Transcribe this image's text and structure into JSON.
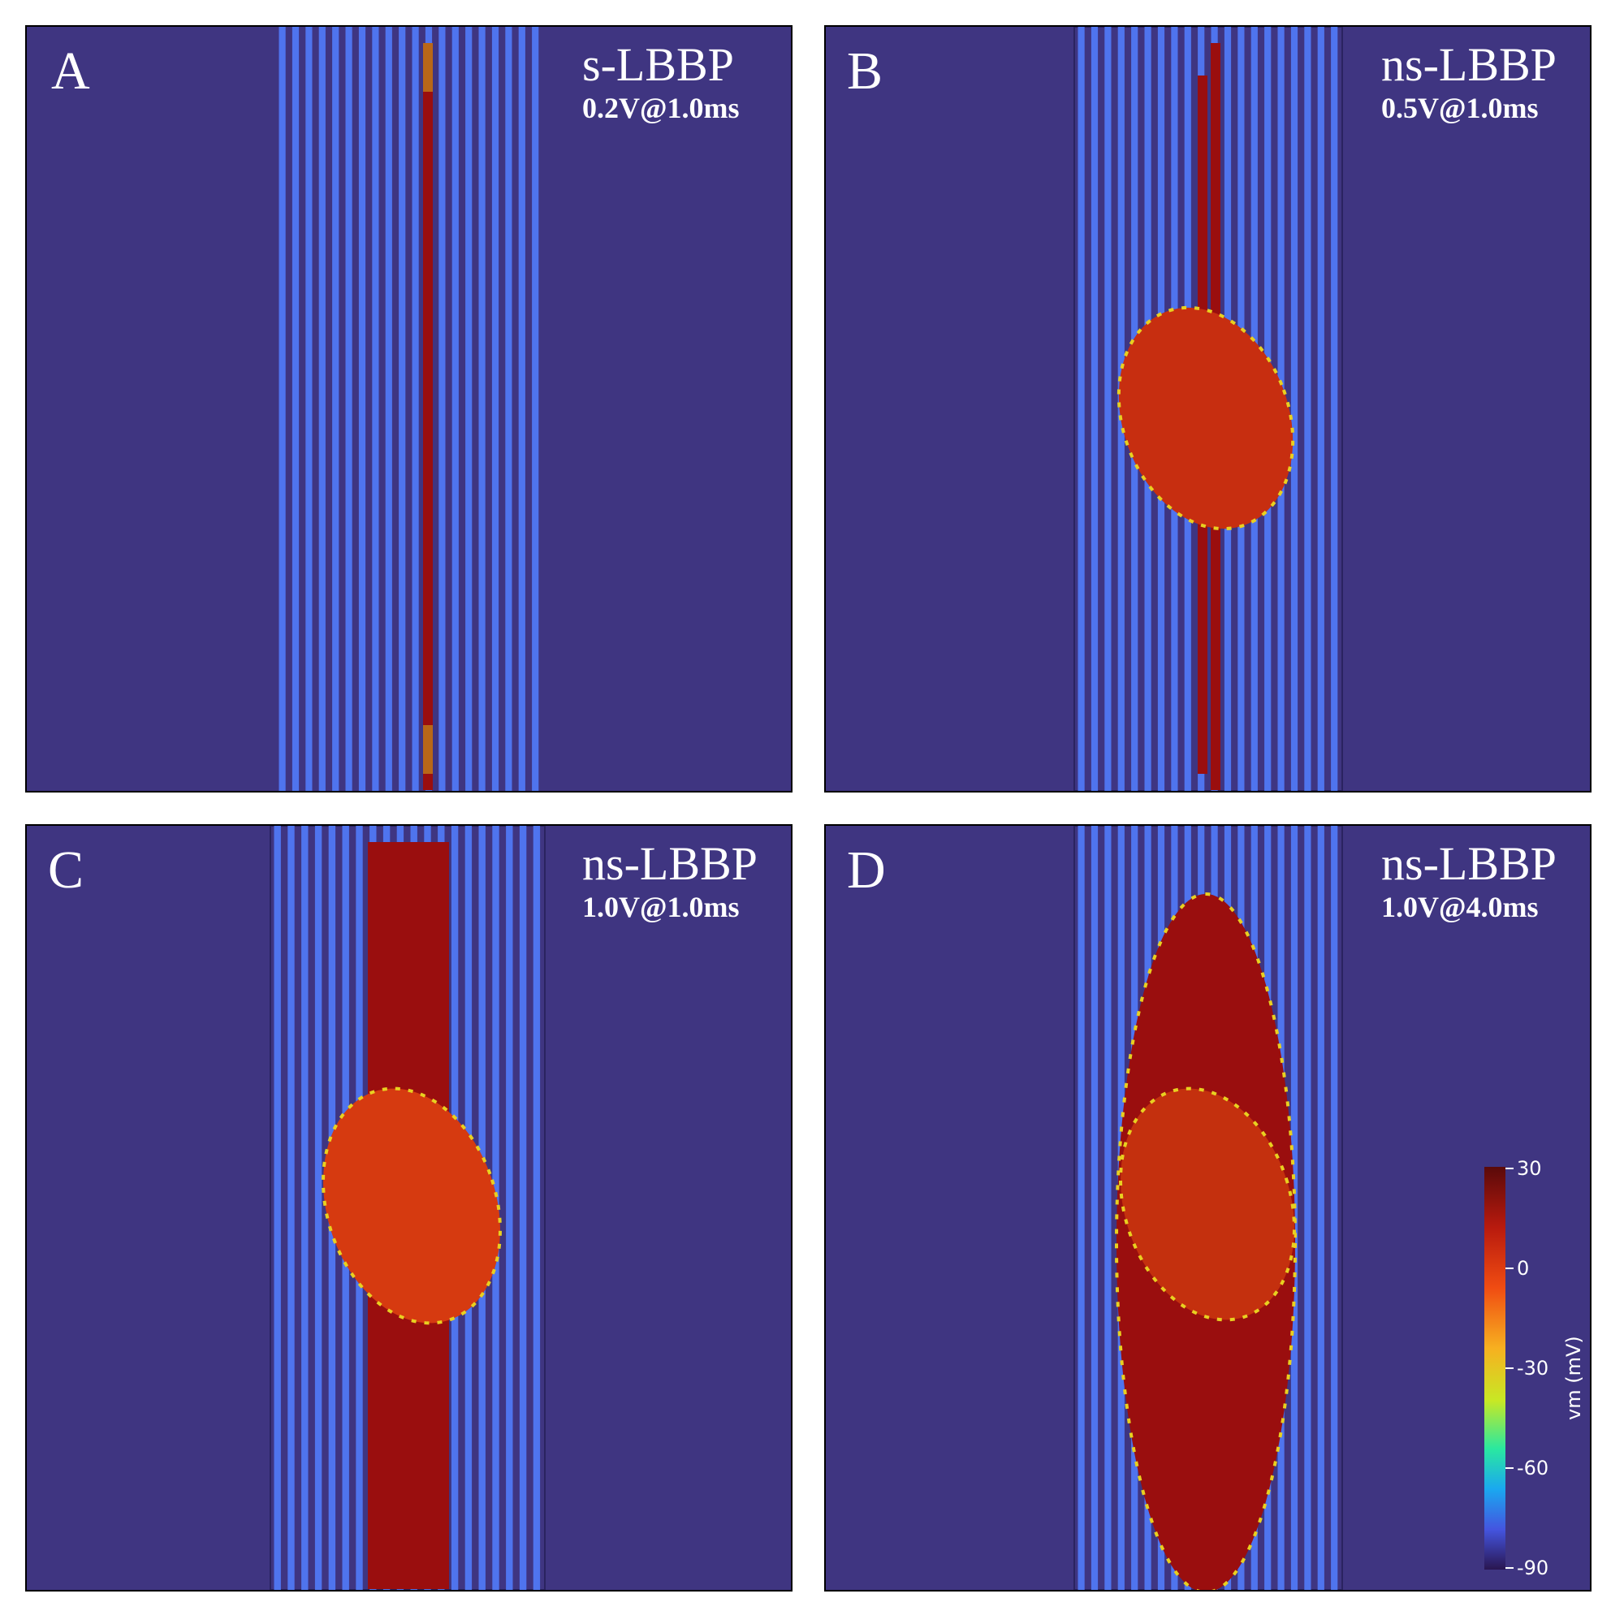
{
  "colors": {
    "background": "#3f3581",
    "fiber_resting": "#4f74ee",
    "fiber_activated": "#9a0e0e",
    "activation_core": "#d83a10"
  },
  "panels": [
    {
      "letter": "A",
      "title": "s-LBBP",
      "param": "0.2V@1.0ms"
    },
    {
      "letter": "B",
      "title": "ns-LBBP",
      "param": "0.5V@1.0ms"
    },
    {
      "letter": "C",
      "title": "ns-LBBP",
      "param": "1.0V@1.0ms"
    },
    {
      "letter": "D",
      "title": "ns-LBBP",
      "param": "1.0V@4.0ms"
    }
  ],
  "colorbar": {
    "title": "vm (mV)",
    "ticks": [
      "30",
      "0",
      "-30",
      "-60",
      "-90"
    ],
    "range": [
      -90,
      30
    ]
  }
}
